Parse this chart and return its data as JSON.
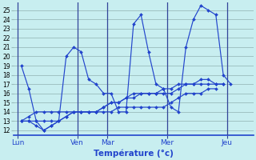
{
  "bg_color": "#c8eef0",
  "grid_color": "#99bbbb",
  "line_color": "#2244cc",
  "xlabel": "Température (°c)",
  "ylim": [
    11.5,
    25.8
  ],
  "yticks": [
    12,
    13,
    14,
    15,
    16,
    17,
    18,
    19,
    20,
    21,
    22,
    23,
    24,
    25
  ],
  "day_labels": [
    "Lun",
    "Ven",
    "Mar",
    "Mer",
    "Jeu"
  ],
  "day_x": [
    0.5,
    8.5,
    12.5,
    20.5,
    28.5
  ],
  "vline_x": [
    0.5,
    8.5,
    12.5,
    20.5,
    28.5
  ],
  "xlim": [
    0,
    32
  ],
  "series": [
    [
      19,
      16.5,
      13,
      12,
      12.5,
      13,
      20,
      21,
      20.5,
      17.5,
      17,
      16,
      16,
      14,
      14,
      23.5,
      24.5,
      20.5,
      17,
      16.5,
      14.5,
      14,
      21,
      24,
      25.5,
      25,
      24.5,
      18,
      17
    ],
    [
      13,
      13,
      12.5,
      12,
      12.5,
      13,
      13.5,
      14,
      14,
      14,
      14,
      14,
      14,
      14.5,
      14.5,
      14.5,
      14.5,
      14.5,
      14.5,
      14.5,
      15,
      15.5,
      16,
      16,
      16,
      16.5,
      16.5
    ],
    [
      13,
      13,
      13,
      13,
      13,
      13,
      13.5,
      14,
      14,
      14,
      14,
      14.5,
      15,
      15,
      15.5,
      16,
      16,
      16,
      16,
      16,
      16,
      16.5,
      17,
      17,
      17,
      17,
      17,
      17
    ],
    [
      13,
      13.5,
      14,
      14,
      14,
      14,
      14,
      14,
      14,
      14,
      14,
      14.5,
      15,
      15,
      15.5,
      15.5,
      16,
      16,
      16,
      16.5,
      16.5,
      17,
      17,
      17,
      17.5,
      17.5,
      17,
      17
    ]
  ]
}
